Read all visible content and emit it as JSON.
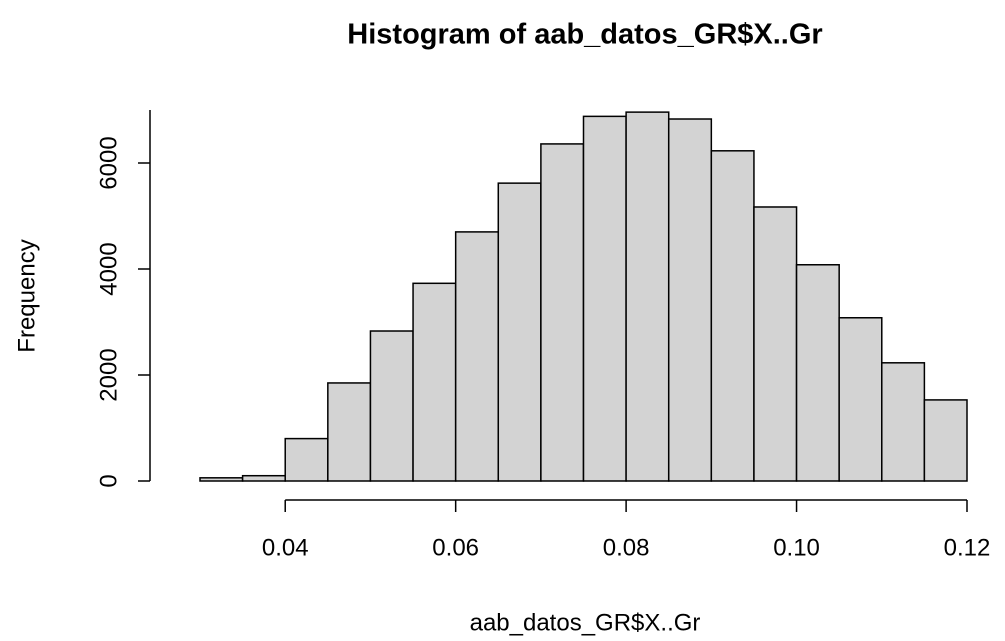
{
  "chart_data": {
    "type": "histogram",
    "title": "Histogram of aab_datos_GR$X..Gr",
    "xlabel": "aab_datos_GR$X..Gr",
    "ylabel": "Frequency",
    "bins": [
      0.03,
      0.035,
      0.04,
      0.045,
      0.05,
      0.055,
      0.06,
      0.065,
      0.07,
      0.075,
      0.08,
      0.085,
      0.09,
      0.095,
      0.1,
      0.105,
      0.11,
      0.115,
      0.12
    ],
    "counts": [
      60,
      100,
      800,
      1850,
      2830,
      3730,
      4700,
      5620,
      6360,
      6880,
      6960,
      6830,
      6230,
      5170,
      4080,
      3080,
      2230,
      1530
    ],
    "color": "#d3d3d3",
    "xlim": [
      0.03,
      0.12
    ],
    "xticks": [
      0.04,
      0.06,
      0.08,
      {
        "value": 0.1,
        "label": "0.10"
      },
      0.12
    ],
    "ylim": [
      0,
      7000
    ],
    "yticks": [
      0,
      2000,
      4000,
      6000
    ]
  }
}
